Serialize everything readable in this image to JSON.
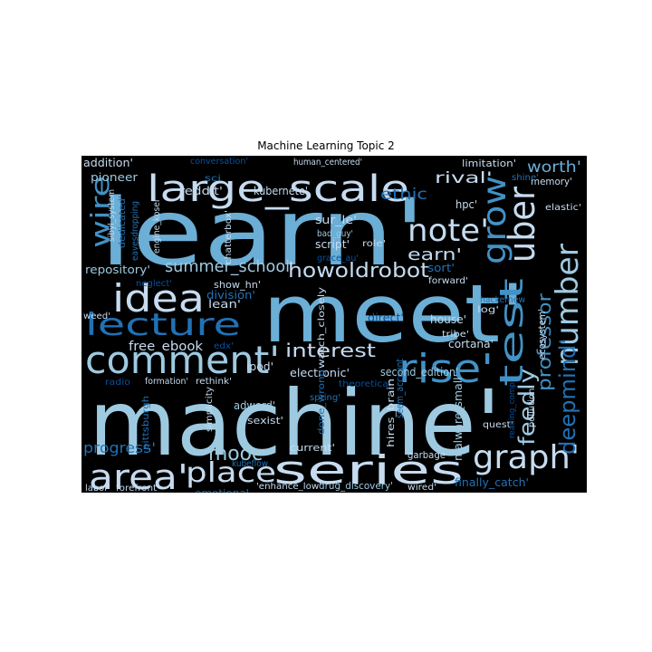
{
  "title": "Machine Learning Topic 2",
  "palette": {
    "background": "#000000",
    "light": "#c6dbef",
    "pale": "#9ecae1",
    "mid": "#6baed6",
    "blue": "#4292c6",
    "deep": "#2171b5",
    "navy": "#08519c"
  },
  "words": [
    {
      "t": "learn'",
      "c": "mid"
    },
    {
      "t": "meet'",
      "c": "mid"
    },
    {
      "t": "machine'",
      "c": "pale"
    },
    {
      "t": "large_scale",
      "c": "light"
    },
    {
      "t": "series",
      "c": "light"
    },
    {
      "t": "comment'",
      "c": "pale"
    },
    {
      "t": "area'",
      "c": "light"
    },
    {
      "t": "idea",
      "c": "light"
    },
    {
      "t": "lecture",
      "c": "deep"
    },
    {
      "t": "rise'",
      "c": "blue"
    },
    {
      "t": "uber",
      "c": "light"
    },
    {
      "t": "note'",
      "c": "light"
    },
    {
      "t": "grow",
      "c": "blue"
    },
    {
      "t": "number",
      "c": "pale"
    },
    {
      "t": "test",
      "c": "blue"
    },
    {
      "t": "graph'",
      "c": "light"
    },
    {
      "t": "wire",
      "c": "blue"
    },
    {
      "t": "place",
      "c": "light"
    },
    {
      "t": "mooc",
      "c": "pale"
    },
    {
      "t": "deepmind'",
      "c": "deep"
    },
    {
      "t": "feedly",
      "c": "pale"
    },
    {
      "t": "professor",
      "c": "blue"
    },
    {
      "t": "howoldrobot",
      "c": "light"
    },
    {
      "t": "interest",
      "c": "light"
    },
    {
      "t": "summer_school",
      "c": "pale"
    },
    {
      "t": "ethic",
      "c": "deep"
    },
    {
      "t": "rival'",
      "c": "light"
    },
    {
      "t": "earn'",
      "c": "light"
    },
    {
      "t": "worth'",
      "c": "mid"
    },
    {
      "t": "progress'",
      "c": "deep"
    },
    {
      "t": "free_ebook",
      "c": "light"
    },
    {
      "t": "reddit'",
      "c": "light"
    },
    {
      "t": "kubernete'",
      "c": "light"
    },
    {
      "t": "addition'",
      "c": "light"
    },
    {
      "t": "pioneer",
      "c": "pale"
    },
    {
      "t": "repository'",
      "c": "pale"
    },
    {
      "t": "division'",
      "c": "deep"
    },
    {
      "t": "show_hn'",
      "c": "light"
    },
    {
      "t": "lean'",
      "c": "light"
    },
    {
      "t": "house'",
      "c": "light"
    },
    {
      "t": "cortana'",
      "c": "light"
    },
    {
      "t": "tribe'",
      "c": "light"
    },
    {
      "t": "electronic'",
      "c": "light"
    },
    {
      "t": "second_edition'",
      "c": "pale"
    },
    {
      "t": "ipod'",
      "c": "light"
    },
    {
      "t": "adword'",
      "c": "pale"
    },
    {
      "t": "sexist'",
      "c": "light"
    },
    {
      "t": "current'",
      "c": "light"
    },
    {
      "t": "emotional",
      "c": "deep"
    },
    {
      "t": "'enhance_low'",
      "c": "light"
    },
    {
      "t": "drug_discovery'",
      "c": "pale"
    },
    {
      "t": "wired'",
      "c": "light"
    },
    {
      "t": "finally_catch'",
      "c": "deep"
    },
    {
      "t": "garbage",
      "c": "light"
    },
    {
      "t": "quest'",
      "c": "light"
    },
    {
      "t": "pollution'",
      "c": "light"
    },
    {
      "t": "ecosystem'",
      "c": "light"
    },
    {
      "t": "limitation'",
      "c": "light"
    },
    {
      "t": "memory'",
      "c": "light"
    },
    {
      "t": "elastic'",
      "c": "light"
    },
    {
      "t": "hpc'",
      "c": "light"
    },
    {
      "t": "shine'",
      "c": "deep"
    },
    {
      "t": "sur_le'",
      "c": "light"
    },
    {
      "t": "bad_guy'",
      "c": "pale"
    },
    {
      "t": "script'",
      "c": "light"
    },
    {
      "t": "grace_au'",
      "c": "navy"
    },
    {
      "t": "role'",
      "c": "light"
    },
    {
      "t": "sort'",
      "c": "deep"
    },
    {
      "t": "forward'",
      "c": "light"
    },
    {
      "t": "hackernew",
      "c": "deep"
    },
    {
      "t": "log'",
      "c": "light"
    },
    {
      "t": "direct'",
      "c": "navy"
    },
    {
      "t": "theoretical",
      "c": "navy"
    },
    {
      "t": "spring'",
      "c": "deep"
    },
    {
      "t": "seem_account",
      "c": "deep"
    },
    {
      "t": "hires_brain",
      "c": "light"
    },
    {
      "t": "malware_small'",
      "c": "pale"
    },
    {
      "t": "done_wrong",
      "c": "deep"
    },
    {
      "t": "watch_closely",
      "c": "light"
    },
    {
      "t": "reading_comp",
      "c": "navy"
    },
    {
      "t": "conversation'",
      "c": "navy"
    },
    {
      "t": "human_centered'",
      "c": "light"
    },
    {
      "t": "sibyl_system",
      "c": "light"
    },
    {
      "t": "dedicated'",
      "c": "deep"
    },
    {
      "t": "engine_kosei'",
      "c": "light"
    },
    {
      "t": "eavesdropping",
      "c": "deep"
    },
    {
      "t": "chatterbox'",
      "c": "light"
    },
    {
      "t": "neglect'",
      "c": "navy"
    },
    {
      "t": "weed'",
      "c": "light"
    },
    {
      "t": "edx'",
      "c": "navy"
    },
    {
      "t": "radio",
      "c": "navy"
    },
    {
      "t": "formation'",
      "c": "light"
    },
    {
      "t": "rethink'",
      "c": "light"
    },
    {
      "t": "pittsburgh",
      "c": "deep"
    },
    {
      "t": "simplicity",
      "c": "light"
    },
    {
      "t": "kubeflow",
      "c": "deep"
    },
    {
      "t": "labor'",
      "c": "light"
    },
    {
      "t": "forefront'",
      "c": "light"
    },
    {
      "t": "sci",
      "c": "deep"
    }
  ]
}
